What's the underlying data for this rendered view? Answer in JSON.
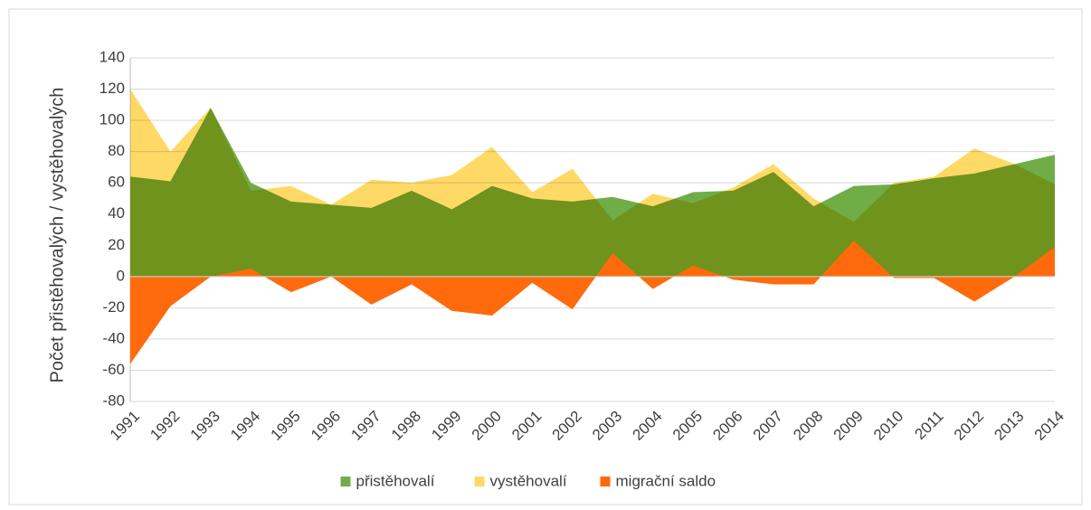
{
  "chart_data": {
    "type": "area",
    "y_label": "Počet přistěhovalých / vystěhovalých",
    "categories": [
      "1991",
      "1992",
      "1993",
      "1994",
      "1995",
      "1996",
      "1997",
      "1998",
      "1999",
      "2000",
      "2001",
      "2002",
      "2003",
      "2004",
      "2005",
      "2006",
      "2007",
      "2008",
      "2009",
      "2010",
      "2011",
      "2012",
      "2013",
      "2014"
    ],
    "series": [
      {
        "name": "přistěhovalí",
        "color": "#70ad47",
        "values": [
          64,
          61,
          108,
          60,
          48,
          46,
          44,
          55,
          43,
          58,
          50,
          48,
          51,
          45,
          54,
          55,
          67,
          45,
          58,
          59,
          63,
          66,
          72,
          78
        ]
      },
      {
        "name": "vystěhovalí",
        "color": "#ffd966",
        "values": [
          120,
          80,
          108,
          55,
          58,
          46,
          62,
          60,
          65,
          83,
          54,
          69,
          36,
          53,
          47,
          57,
          72,
          50,
          35,
          60,
          64,
          82,
          72,
          59
        ]
      },
      {
        "name": "migrační saldo",
        "color": "#ff6a0d",
        "values": [
          -56,
          -19,
          0,
          5,
          -10,
          0,
          -18,
          -5,
          -22,
          -25,
          -4,
          -21,
          15,
          -8,
          7,
          -2,
          -5,
          -5,
          23,
          -1,
          -1,
          -16,
          0,
          19
        ]
      }
    ],
    "ylim": [
      -80,
      140
    ],
    "yticks": [
      -80,
      -60,
      -40,
      -20,
      0,
      20,
      40,
      60,
      80,
      100,
      120,
      140
    ],
    "grid": true,
    "legend": "bottom"
  }
}
